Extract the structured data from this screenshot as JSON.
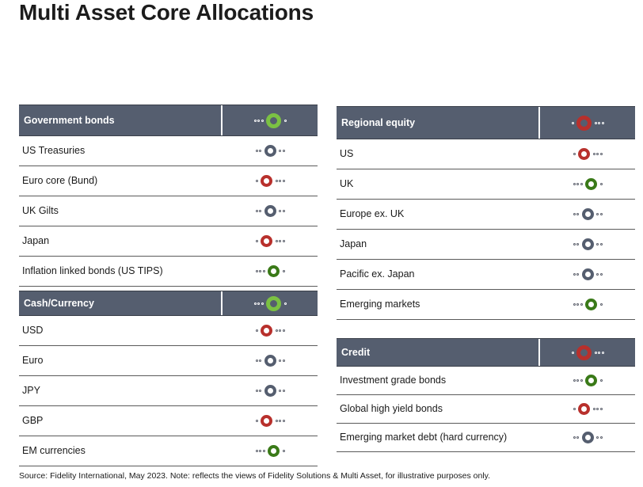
{
  "title": "Multi Asset Core Allocations",
  "legend_colors": {
    "underweight": "#b8302c",
    "neutral": "#555e6f",
    "overweight": "#3a7a18",
    "header_overweight": "#7bc143",
    "header_underweight": "#b8302c"
  },
  "panels": [
    {
      "id": "government-bonds",
      "header": {
        "label": "Government bonds",
        "position": 4,
        "color": "#7bc143"
      },
      "rows": [
        {
          "label": "US Treasuries",
          "position": 3,
          "color": "#555e6f"
        },
        {
          "label": "Euro core (Bund)",
          "position": 2,
          "color": "#b8302c"
        },
        {
          "label": "UK Gilts",
          "position": 3,
          "color": "#555e6f"
        },
        {
          "label": "Japan",
          "position": 2,
          "color": "#b8302c"
        },
        {
          "label": "Inflation linked bonds (US TIPS)",
          "position": 4,
          "color": "#3a7a18"
        }
      ]
    },
    {
      "id": "cash-currency",
      "header": {
        "label": "Cash/Currency",
        "position": 4,
        "color": "#7bc143"
      },
      "rows": [
        {
          "label": "USD",
          "position": 2,
          "color": "#b8302c"
        },
        {
          "label": "Euro",
          "position": 3,
          "color": "#555e6f"
        },
        {
          "label": "JPY",
          "position": 3,
          "color": "#555e6f"
        },
        {
          "label": "GBP",
          "position": 2,
          "color": "#b8302c"
        },
        {
          "label": "EM currencies",
          "position": 4,
          "color": "#3a7a18"
        }
      ]
    },
    {
      "id": "regional-equity",
      "header": {
        "label": "Regional equity",
        "position": 2,
        "color": "#b8302c"
      },
      "rows": [
        {
          "label": "US",
          "position": 2,
          "color": "#b8302c"
        },
        {
          "label": "UK",
          "position": 4,
          "color": "#3a7a18"
        },
        {
          "label": "Europe ex. UK",
          "position": 3,
          "color": "#555e6f"
        },
        {
          "label": "Japan",
          "position": 3,
          "color": "#555e6f"
        },
        {
          "label": "Pacific ex. Japan",
          "position": 3,
          "color": "#555e6f"
        },
        {
          "label": "Emerging markets",
          "position": 4,
          "color": "#3a7a18"
        }
      ]
    },
    {
      "id": "credit",
      "header": {
        "label": "Credit",
        "position": 2,
        "color": "#b8302c"
      },
      "rows": [
        {
          "label": "Investment grade bonds",
          "position": 4,
          "color": "#3a7a18"
        },
        {
          "label": "Global high yield bonds",
          "position": 2,
          "color": "#b8302c"
        },
        {
          "label": "Emerging market debt (hard currency)",
          "position": 3,
          "color": "#555e6f"
        }
      ]
    }
  ],
  "footer": "Source: Fidelity International, May 2023. Note: reflects the views of Fidelity Solutions & Multi Asset, for illustrative purposes only."
}
